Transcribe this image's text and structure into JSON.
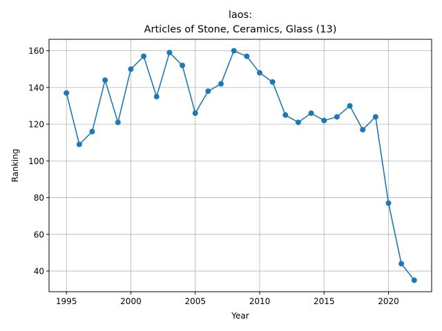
{
  "chart_data": {
    "type": "line",
    "title": "laos:",
    "subtitle": "Articles of Stone, Ceramics, Glass (13)",
    "xlabel": "Year",
    "ylabel": "Ranking",
    "x": [
      1995,
      1996,
      1997,
      1998,
      1999,
      2000,
      2001,
      2002,
      2003,
      2004,
      2005,
      2006,
      2007,
      2008,
      2009,
      2010,
      2011,
      2012,
      2013,
      2014,
      2015,
      2016,
      2017,
      2018,
      2019,
      2020,
      2021,
      2022
    ],
    "series": [
      {
        "values": [
          137,
          109,
          116,
          144,
          121,
          150,
          157,
          135,
          159,
          152,
          126,
          138,
          142,
          160,
          157,
          148,
          143,
          125,
          121,
          126,
          122,
          124,
          130,
          117,
          124,
          77,
          44,
          35
        ],
        "color": "#1f77b4"
      }
    ],
    "xlim": [
      1993.65,
      1983.35
    ],
    "ylim": [
      28.75,
      166.25
    ],
    "xticks": [
      1995,
      2000,
      2005,
      2010,
      2015,
      2020
    ],
    "yticks": [
      40,
      60,
      80,
      100,
      120,
      140,
      160
    ],
    "grid": true
  }
}
